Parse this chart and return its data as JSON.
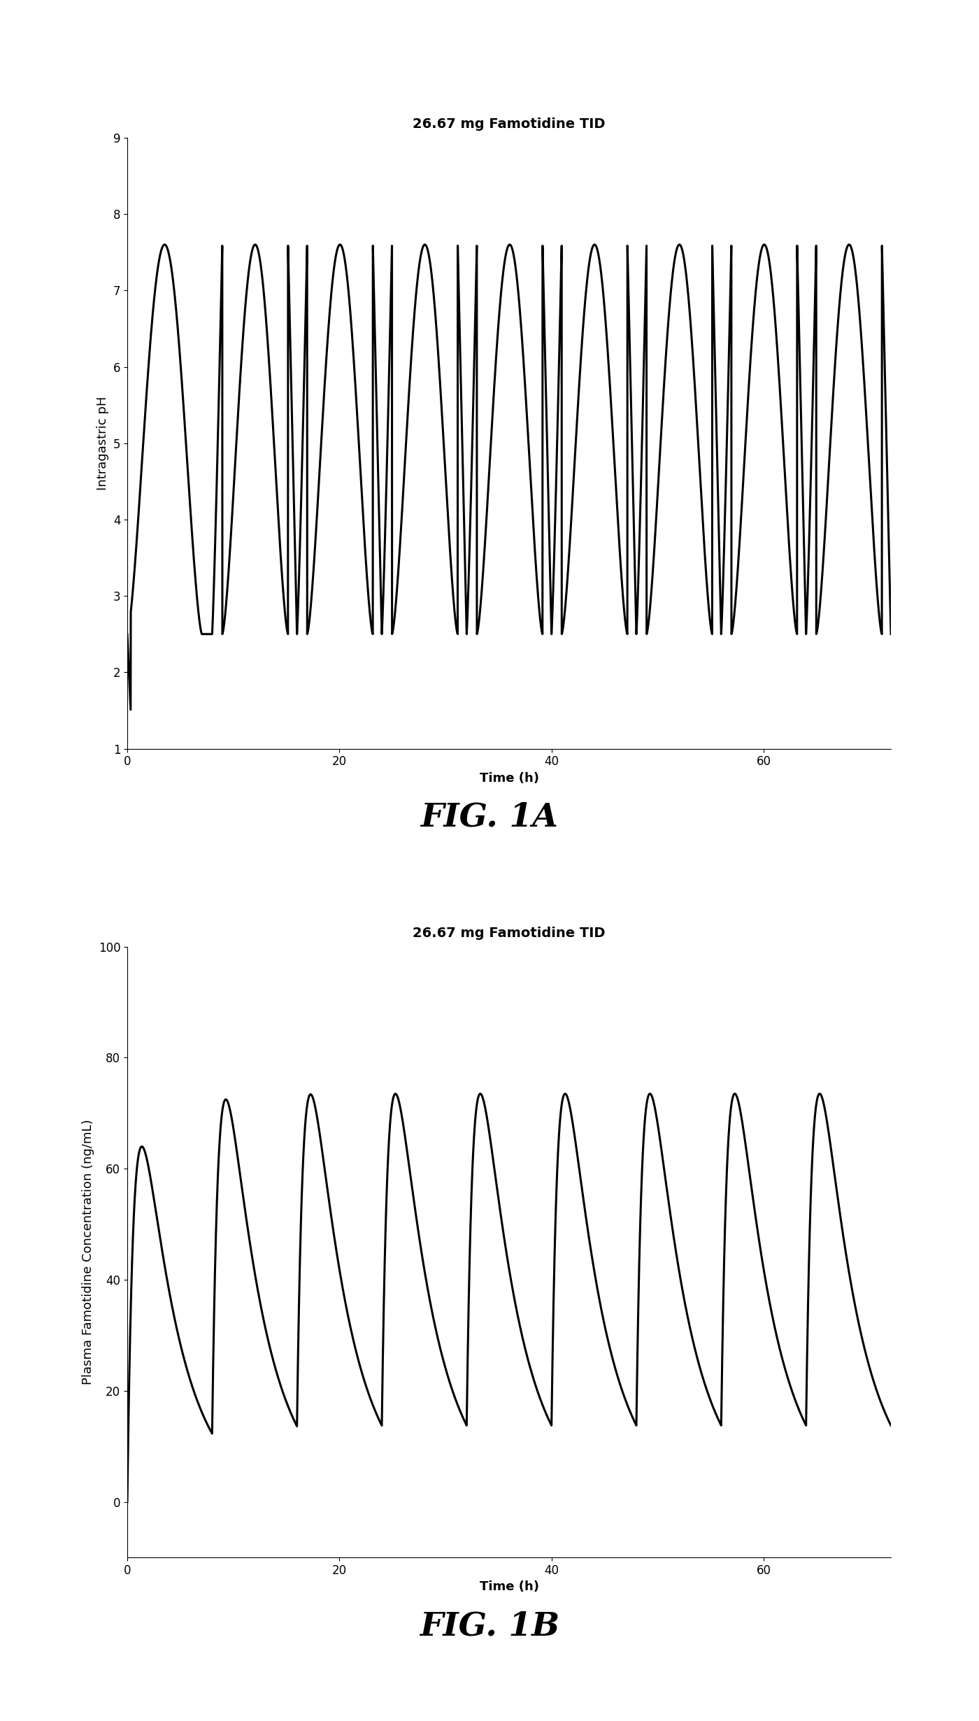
{
  "fig1a": {
    "title": "26.67 mg Famotidine TID",
    "xlabel": "Time (h)",
    "ylabel": "Intragastric pH",
    "xlim": [
      0,
      72
    ],
    "ylim": [
      1,
      9
    ],
    "yticks": [
      1,
      2,
      3,
      4,
      5,
      6,
      7,
      8,
      9
    ],
    "xticks": [
      0,
      20,
      40,
      60
    ],
    "fig_label": "FIG. 1A",
    "period": 8.0,
    "ph_max": 7.6,
    "ph_min": 2.5,
    "ph_baseline": 1.5,
    "tmax_ph": 2.5,
    "ka_ph": 1.8,
    "ke_ph": 0.55
  },
  "fig1b": {
    "title": "26.67 mg Famotidine TID",
    "xlabel": "Time (h)",
    "ylabel": "Plasma Famotidine Concentration (ng/mL)",
    "xlim": [
      0,
      72
    ],
    "ylim": [
      -10,
      100
    ],
    "yticks": [
      0,
      20,
      40,
      60,
      80,
      100
    ],
    "xticks": [
      0,
      20,
      40,
      60
    ],
    "fig_label": "FIG. 1B",
    "period": 8.0,
    "conc_max_first": 64.0,
    "conc_max_steady": 77.0,
    "conc_min_steady": 25.0,
    "ka": 1.5,
    "ke": 0.28
  },
  "line_color": "#000000",
  "line_width": 2.2,
  "bg_color": "#ffffff",
  "font_color": "#000000",
  "title_fontsize": 14,
  "label_fontsize": 13,
  "tick_fontsize": 12,
  "fig_label_fontsize": 34
}
